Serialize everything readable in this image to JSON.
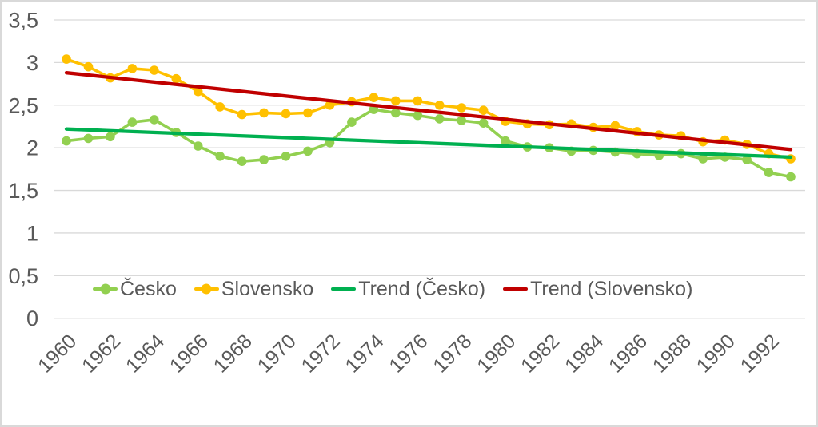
{
  "chart_data": {
    "type": "line",
    "title": "",
    "xlabel": "",
    "ylabel": "",
    "grid": true,
    "legend_position": "bottom-inside",
    "ylim": [
      0,
      3.5
    ],
    "x": [
      1960,
      1961,
      1962,
      1963,
      1964,
      1965,
      1966,
      1967,
      1968,
      1969,
      1970,
      1971,
      1972,
      1973,
      1974,
      1975,
      1976,
      1977,
      1978,
      1979,
      1980,
      1981,
      1982,
      1983,
      1984,
      1985,
      1986,
      1987,
      1988,
      1989,
      1990,
      1991,
      1992,
      1993
    ],
    "x_tick_labels": [
      "1960",
      "1962",
      "1964",
      "1966",
      "1968",
      "1970",
      "1972",
      "1974",
      "1976",
      "1978",
      "1980",
      "1982",
      "1984",
      "1986",
      "1988",
      "1990",
      "1992"
    ],
    "y_ticks": [
      {
        "value": 0,
        "label": "0"
      },
      {
        "value": 0.5,
        "label": "0,5"
      },
      {
        "value": 1,
        "label": "1"
      },
      {
        "value": 1.5,
        "label": "1,5"
      },
      {
        "value": 2,
        "label": "2"
      },
      {
        "value": 2.5,
        "label": "2,5"
      },
      {
        "value": 3,
        "label": "3"
      },
      {
        "value": 3.5,
        "label": "3,5"
      }
    ],
    "series": [
      {
        "name": "Česko",
        "kind": "line-markers",
        "color": "#92D050",
        "values": [
          2.08,
          2.11,
          2.13,
          2.3,
          2.33,
          2.18,
          2.02,
          1.9,
          1.84,
          1.86,
          1.9,
          1.96,
          2.06,
          2.3,
          2.45,
          2.41,
          2.38,
          2.34,
          2.32,
          2.29,
          2.08,
          2.01,
          2.0,
          1.96,
          1.97,
          1.95,
          1.93,
          1.91,
          1.93,
          1.87,
          1.89,
          1.86,
          1.71,
          1.66
        ]
      },
      {
        "name": "Slovensko",
        "kind": "line-markers",
        "color": "#FFC000",
        "values": [
          3.04,
          2.95,
          2.82,
          2.93,
          2.91,
          2.81,
          2.66,
          2.48,
          2.39,
          2.41,
          2.4,
          2.41,
          2.5,
          2.54,
          2.59,
          2.55,
          2.55,
          2.5,
          2.47,
          2.44,
          2.31,
          2.28,
          2.27,
          2.28,
          2.24,
          2.26,
          2.19,
          2.15,
          2.14,
          2.07,
          2.09,
          2.04,
          1.93,
          1.87
        ]
      },
      {
        "name": "Trend (Česko)",
        "kind": "trendline",
        "color": "#00B050",
        "start": 2.22,
        "end": 1.89
      },
      {
        "name": "Trend (Slovensko)",
        "kind": "trendline",
        "color": "#C00000",
        "start": 2.88,
        "end": 1.98
      }
    ]
  },
  "colors": {
    "axis_text": "#595959",
    "gridline": "#D9D9D9",
    "canvas_border": "#D9D9D9",
    "background": "#FFFFFF"
  }
}
